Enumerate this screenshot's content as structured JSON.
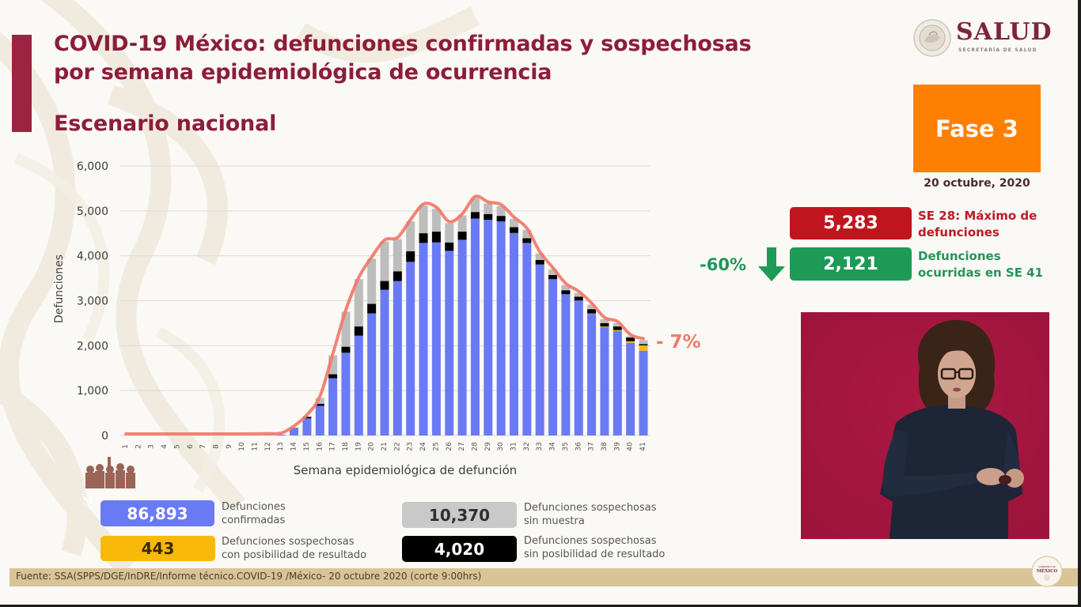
{
  "header": {
    "title_line1": "COVID-19 México: defunciones confirmadas y sospechosas",
    "title_line2": "por semana epidemiológica de ocurrencia",
    "subtitle": "Escenario nacional"
  },
  "logo": {
    "name": "SALUD",
    "subtitle": "SECRETARÍA DE SALUD",
    "seal_icon": "mexico-seal-icon"
  },
  "phase": {
    "label": "Fase 3",
    "date": "20 octubre, 2020",
    "color": "#ff7f00"
  },
  "stats": {
    "max": {
      "value": "5,283",
      "label_line1": "SE 28: Máximo de",
      "label_line2": "defunciones",
      "color": "#c1151d"
    },
    "current": {
      "value": "2,121",
      "label_line1": "Defunciones",
      "label_line2": "ocurridas en SE 41",
      "color": "#1e9a57"
    },
    "change": {
      "value": "-60%",
      "icon": "down-arrow-icon"
    }
  },
  "chart_data": {
    "type": "bar",
    "stacked": true,
    "title": "",
    "xlabel": "Semana epidemiológica de defunción",
    "ylabel": "Defunciones",
    "ylim": [
      0,
      6000
    ],
    "yticks": [
      0,
      1000,
      2000,
      3000,
      4000,
      5000,
      6000
    ],
    "ytick_labels": [
      "0",
      "1,000",
      "2,000",
      "3,000",
      "4,000",
      "5,000",
      "6,000"
    ],
    "grid": true,
    "categories": [
      "1",
      "2",
      "3",
      "4",
      "5",
      "6",
      "7",
      "8",
      "9",
      "10",
      "11",
      "12",
      "13",
      "14",
      "15",
      "16",
      "17",
      "18",
      "19",
      "20",
      "21",
      "22",
      "23",
      "24",
      "25",
      "26",
      "27",
      "28",
      "29",
      "30",
      "31",
      "32",
      "33",
      "34",
      "35",
      "36",
      "37",
      "38",
      "39",
      "40",
      "41"
    ],
    "series": [
      {
        "name": "Defunciones confirmadas",
        "color": "#6a7af5",
        "values": [
          0,
          0,
          0,
          0,
          0,
          0,
          0,
          0,
          0,
          0,
          2,
          6,
          18,
          163,
          380,
          660,
          1275,
          1842,
          2222,
          2719,
          3245,
          3439,
          3865,
          4287,
          4298,
          4111,
          4357,
          4830,
          4801,
          4766,
          4509,
          4287,
          3807,
          3480,
          3146,
          3000,
          2707,
          2415,
          2327,
          2064,
          1889
        ]
      },
      {
        "name": "Defunciones sospechosas con posibilidad de resultado",
        "color": "#f9b908",
        "values": [
          0,
          0,
          0,
          0,
          0,
          0,
          0,
          0,
          0,
          0,
          0,
          0,
          0,
          0,
          0,
          0,
          0,
          0,
          0,
          0,
          0,
          0,
          0,
          0,
          0,
          0,
          0,
          0,
          0,
          0,
          0,
          0,
          0,
          0,
          0,
          5,
          8,
          12,
          20,
          35,
          117
        ]
      },
      {
        "name": "Defunciones sospechosas sin posibilidad de resultado",
        "color": "#000000",
        "values": [
          0,
          0,
          0,
          0,
          0,
          0,
          0,
          0,
          0,
          0,
          0,
          0,
          0,
          5,
          35,
          47,
          88,
          135,
          205,
          211,
          194,
          216,
          235,
          216,
          240,
          187,
          181,
          146,
          129,
          123,
          128,
          105,
          99,
          93,
          88,
          83,
          98,
          76,
          80,
          82,
          29
        ]
      },
      {
        "name": "Defunciones sospechosas sin muestra",
        "color": "#bdbdbd",
        "values": [
          0,
          0,
          0,
          0,
          0,
          0,
          0,
          0,
          0,
          0,
          0,
          0,
          0,
          8,
          10,
          129,
          421,
          777,
          1053,
          1006,
          877,
          719,
          666,
          614,
          509,
          427,
          362,
          307,
          234,
          216,
          188,
          187,
          147,
          129,
          117,
          87,
          99,
          88,
          76,
          29,
          86
        ]
      }
    ],
    "line": {
      "name": "Total defunciones",
      "color": "#f0786a",
      "values": [
        0,
        0,
        0,
        0,
        0,
        0,
        0,
        0,
        0,
        0,
        2,
        6,
        18,
        176,
        425,
        836,
        1784,
        2754,
        3480,
        3936,
        4316,
        4374,
        4766,
        5117,
        5047,
        4725,
        4900,
        5283,
        5164,
        5105,
        4825,
        4579,
        4053,
        3702,
        3351,
        3175,
        2912,
        2591,
        2503,
        2210,
        2121
      ]
    },
    "annotation": "- 7%",
    "legend_position": "bottom"
  },
  "legend": [
    {
      "value": "86,893",
      "label_line1": "Defunciones",
      "label_line2": "confirmadas",
      "color": "#6a7af5"
    },
    {
      "value": "443",
      "label_line1": "Defunciones sospechosas",
      "label_line2": "con posibilidad de resultado",
      "color": "#f9b908"
    },
    {
      "value": "10,370",
      "label_line1": "Defunciones sospechosas",
      "label_line2": "sin muestra",
      "color": "#c9c9c9"
    },
    {
      "value": "4,020",
      "label_line1": "Defunciones sospechosas",
      "label_line2": "sin posibilidad de resultado",
      "color": "#000000"
    }
  ],
  "watermark": {
    "gob_line1": "GOBIERNO DE",
    "gob_line2": "MÉXICO"
  },
  "footer": {
    "source": "Fuente: SSA(SPPS/DGE/InDRE/Informe técnico.COVID-19 /México- 20 octubre 2020 (corte 9:00hrs)",
    "seal_line1": "GOBIERNO DE",
    "seal_line2": "MÉXICO"
  },
  "interpreter": {
    "background": "#a5163f"
  }
}
